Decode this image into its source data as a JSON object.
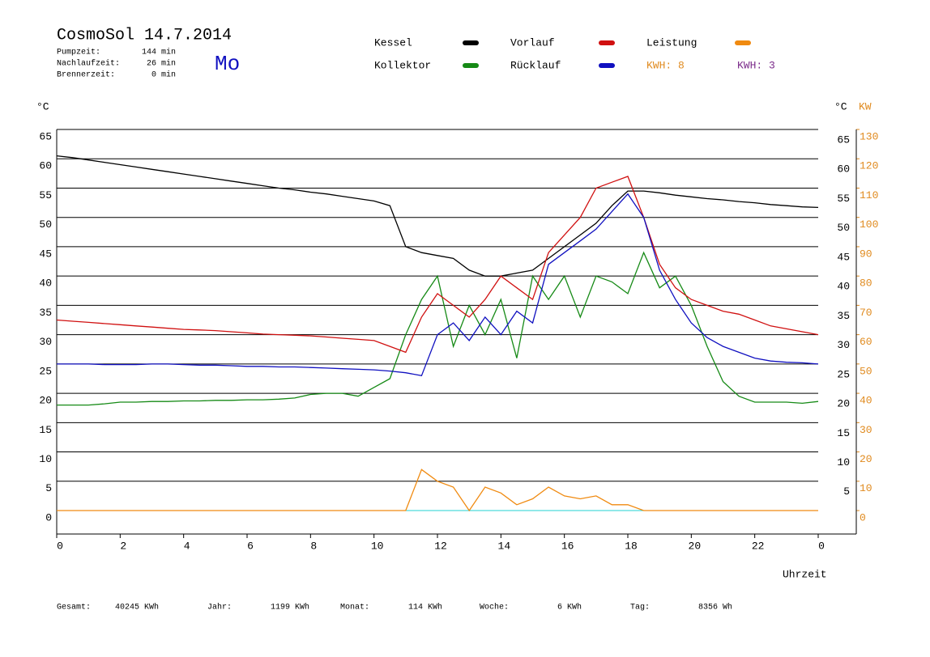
{
  "chart_data": {
    "type": "line",
    "title": "CosmoSol 14.7.2014",
    "day": "Mo",
    "info": [
      {
        "label": "Pumpzeit:",
        "value": "144 min"
      },
      {
        "label": "Nachlaufzeit:",
        "value": "26 min"
      },
      {
        "label": "Brennerzeit:",
        "value": "0 min"
      }
    ],
    "kwh": [
      {
        "text": "KWH: 8",
        "color": "#e08a1e"
      },
      {
        "text": "KWH: 3",
        "color": "#7a2a8a"
      }
    ],
    "totals": [
      {
        "label": "Gesamt:",
        "value": "40245 KWh"
      },
      {
        "label": "Jahr:",
        "value": "1199 KWh"
      },
      {
        "label": "Monat:",
        "value": "114 KWh"
      },
      {
        "label": "Woche:",
        "value": "6 KWh"
      },
      {
        "label": "Tag:",
        "value": "8356 Wh"
      }
    ],
    "ylabel": "°C",
    "y2label": "KW",
    "xlabel": "Uhrzeit",
    "xlim": [
      0,
      25.2
    ],
    "xticks": [
      0,
      2,
      4,
      6,
      8,
      10,
      12,
      14,
      16,
      18,
      20,
      22,
      {
        "value": 24,
        "label": "0"
      }
    ],
    "ylim": [
      -4,
      65
    ],
    "yticks": [
      0,
      5,
      10,
      15,
      20,
      25,
      30,
      35,
      40,
      45,
      50,
      55,
      60,
      65
    ],
    "y2lim": [
      -8,
      130
    ],
    "y2ticks": [
      0,
      10,
      20,
      30,
      40,
      50,
      60,
      70,
      80,
      90,
      100,
      110,
      120,
      130
    ],
    "grid": true,
    "x": [
      0,
      0.5,
      1,
      1.5,
      2,
      2.5,
      3,
      3.5,
      4,
      4.5,
      5,
      5.5,
      6,
      6.5,
      7,
      7.5,
      8,
      8.5,
      9,
      9.5,
      10,
      10.5,
      11,
      11.5,
      12,
      12.5,
      13,
      13.5,
      14,
      14.5,
      15,
      15.5,
      16,
      16.5,
      17,
      17.5,
      18,
      18.5,
      19,
      19.5,
      20,
      20.5,
      21,
      21.5,
      22,
      22.5,
      23,
      23.5,
      24
    ],
    "series": [
      {
        "name": "Kessel",
        "color": "#000000",
        "values": [
          60.5,
          60.2,
          59.8,
          59.4,
          59,
          58.6,
          58.2,
          57.8,
          57.4,
          57,
          56.6,
          56.2,
          55.8,
          55.4,
          55,
          54.7,
          54.3,
          54,
          53.6,
          53.2,
          52.8,
          52,
          45,
          44,
          43.5,
          43,
          41,
          40,
          40,
          40.5,
          41,
          43,
          45,
          47,
          49,
          52,
          54.5,
          54.5,
          54.2,
          53.8,
          53.5,
          53.2,
          53,
          52.7,
          52.5,
          52.2,
          52,
          51.8,
          51.7
        ]
      },
      {
        "name": "Kollektor",
        "color": "#168a16",
        "values": [
          18,
          18,
          18,
          18.2,
          18.5,
          18.5,
          18.6,
          18.6,
          18.7,
          18.7,
          18.8,
          18.8,
          18.9,
          18.9,
          19,
          19.2,
          19.8,
          20,
          20,
          19.5,
          21,
          22.5,
          30,
          36,
          40,
          28,
          35,
          30,
          36,
          26,
          40,
          36,
          40,
          33,
          40,
          39,
          37,
          44,
          38,
          40,
          35,
          28,
          22,
          19.5,
          18.5,
          18.5,
          18.5,
          18.3,
          18.6
        ]
      },
      {
        "name": "Vorlauf",
        "color": "#d01010",
        "values": [
          32.5,
          32.3,
          32.1,
          31.9,
          31.7,
          31.5,
          31.3,
          31.1,
          30.9,
          30.8,
          30.7,
          30.5,
          30.3,
          30.1,
          30,
          29.9,
          29.8,
          29.6,
          29.4,
          29.2,
          29,
          28,
          27,
          33,
          37,
          35,
          33,
          36,
          40,
          38,
          36,
          44,
          47,
          50,
          55,
          56,
          57,
          50,
          42,
          38,
          36,
          35,
          34,
          33.5,
          32.5,
          31.5,
          31,
          30.5,
          30
        ]
      },
      {
        "name": "Rücklauf",
        "color": "#1010c0",
        "values": [
          25,
          25,
          25,
          24.9,
          24.9,
          24.9,
          25,
          25,
          24.9,
          24.8,
          24.8,
          24.7,
          24.6,
          24.6,
          24.5,
          24.5,
          24.4,
          24.3,
          24.2,
          24.1,
          24,
          23.8,
          23.5,
          23,
          30,
          32,
          29,
          33,
          30,
          34,
          32,
          42,
          44,
          46,
          48,
          51,
          54,
          50,
          41,
          36,
          32,
          29.5,
          28,
          27,
          26,
          25.5,
          25.3,
          25.2,
          25
        ]
      },
      {
        "name": "Leistung",
        "color": "#f08a10",
        "axis": "y2",
        "values": [
          0,
          0,
          0,
          0,
          0,
          0,
          0,
          0,
          0,
          0,
          0,
          0,
          0,
          0,
          0,
          0,
          0,
          0,
          0,
          0,
          0,
          0,
          0,
          14,
          10,
          8,
          0,
          8,
          6,
          2,
          4,
          8,
          5,
          4,
          5,
          2,
          2,
          0,
          0,
          0,
          0,
          0,
          0,
          0,
          0,
          0,
          0,
          0,
          0
        ]
      }
    ]
  }
}
